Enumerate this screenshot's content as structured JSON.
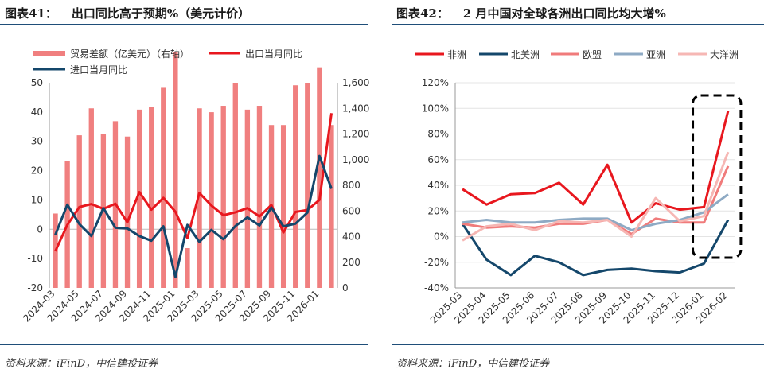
{
  "left": {
    "figure_no": "图表41：",
    "title": "出口同比高于预期%（美元计价）",
    "source": "资料来源：iFinD，中信建投证券"
  },
  "right": {
    "figure_no": "图表42：",
    "title": "2 月中国对全球各洲出口同比均大增%",
    "source": "资料来源：iFinD，中信建投证券"
  },
  "colors": {
    "red": "#e8171e",
    "navy": "#14476b",
    "salmon": "#f07b7b",
    "grey_blue": "#8eaac4",
    "pink": "#f6b7b4",
    "bar": "#f07f7f",
    "rule": "#1f4e79",
    "highlight_box": "#000000"
  },
  "chart_data": [
    {
      "type": "bar",
      "combo": "bar + line (dual axis)",
      "categories": [
        "2024-03",
        "2024-04",
        "2024-05",
        "2024-06",
        "2024-07",
        "2024-08",
        "2024-09",
        "2024-10",
        "2024-11",
        "2024-12",
        "2025-01",
        "2025-02",
        "2025-03",
        "2025-04",
        "2025-05",
        "2025-06",
        "2025-07",
        "2025-08",
        "2025-09",
        "2025-10",
        "2025-11",
        "2025-12",
        "2026-01",
        "2026-02"
      ],
      "tick_labels": [
        "2024-03",
        "2024-05",
        "2024-07",
        "2024-09",
        "2024-11",
        "2025-01",
        "2025-03",
        "2025-05",
        "2025-07",
        "2025-09",
        "2025-11",
        "2026-01"
      ],
      "ylim": [
        -20,
        50
      ],
      "yticks": [
        -20,
        -10,
        0,
        10,
        20,
        30,
        40,
        50
      ],
      "y2lim": [
        0,
        1600
      ],
      "y2ticks": [
        0,
        200,
        400,
        600,
        800,
        1000,
        1200,
        1400,
        1600
      ],
      "y2tick_labels": [
        "0",
        "200",
        "400",
        "600",
        "800",
        "1,000",
        "1,200",
        "1,400",
        "1,600"
      ],
      "legend_position": "top-left",
      "grid": false,
      "bar_series": {
        "name": "贸易差额（亿美元）（右轴）",
        "axis": "right",
        "values": [
          580,
          990,
          1190,
          1400,
          1200,
          1300,
          1180,
          1390,
          1410,
          1560,
          1840,
          310,
          1400,
          1370,
          1420,
          1600,
          1390,
          1420,
          1270,
          1270,
          1580,
          1600,
          1720,
          1270
        ]
      },
      "series": [
        {
          "name": "出口当月同比",
          "axis": "left",
          "values": [
            -7.5,
            1.5,
            7.6,
            8.6,
            7.0,
            8.7,
            2.4,
            12.7,
            6.7,
            10.7,
            6.0,
            -3.0,
            12.4,
            8.1,
            4.8,
            5.8,
            7.2,
            4.4,
            8.3,
            -1.1,
            5.9,
            6.6,
            10.0,
            39.6
          ]
        },
        {
          "name": "进口当月同比",
          "axis": "left",
          "values": [
            -1.9,
            8.4,
            1.8,
            -2.3,
            7.2,
            0.5,
            0.3,
            -2.3,
            -3.9,
            1.0,
            -16.3,
            1.5,
            -4.3,
            -0.2,
            -3.4,
            1.1,
            4.1,
            1.3,
            7.4,
            1.0,
            1.9,
            5.7,
            25.0,
            13.8
          ]
        }
      ]
    },
    {
      "type": "line",
      "categories": [
        "2025-03",
        "2025-04",
        "2025-05",
        "2025-06",
        "2025-07",
        "2025-08",
        "2025-09",
        "2025-10",
        "2025-11",
        "2025-12",
        "2026-01",
        "2026-02"
      ],
      "ylim": [
        -40,
        120
      ],
      "yticks": [
        -40,
        -20,
        0,
        20,
        40,
        60,
        80,
        100,
        120
      ],
      "ytick_labels": [
        "-40%",
        "-20%",
        "0%",
        "20%",
        "40%",
        "60%",
        "80%",
        "100%",
        "120%"
      ],
      "legend_position": "top",
      "grid": true,
      "highlight": {
        "from": "2026-01",
        "to": "2026-02",
        "style": "dashed box"
      },
      "series": [
        {
          "name": "非洲",
          "values": [
            37,
            25,
            33,
            34,
            42,
            25,
            56,
            11,
            26,
            21,
            23,
            98
          ]
        },
        {
          "name": "北美洲",
          "values": [
            10,
            -18,
            -30,
            -15,
            -20,
            -30,
            -26,
            -25,
            -27,
            -28,
            -21,
            13
          ]
        },
        {
          "name": "欧盟",
          "values": [
            10,
            7,
            8,
            7,
            10,
            10,
            13,
            2,
            14,
            11,
            11,
            55
          ]
        },
        {
          "name": "亚洲",
          "values": [
            11,
            13,
            11,
            11,
            13,
            14,
            14,
            5,
            10,
            13,
            19,
            33
          ]
        },
        {
          "name": "大洋洲",
          "values": [
            -3,
            8,
            10,
            5,
            12,
            11,
            13,
            0,
            30,
            12,
            16,
            66
          ]
        }
      ]
    }
  ]
}
